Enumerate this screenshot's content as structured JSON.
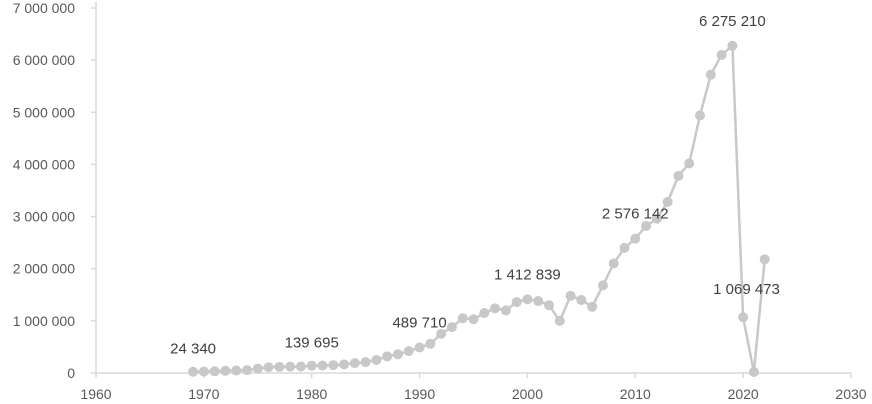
{
  "chart_data": {
    "type": "scatter",
    "style": "line-with-markers",
    "line_color": "#c8c8c8",
    "marker_color": "#c8c8c8",
    "axis_color": "#d9d9d9",
    "grid": false,
    "legend": "none",
    "xlim": [
      1960,
      2030
    ],
    "ylim": [
      0,
      7000000
    ],
    "x_ticks": [
      1960,
      1970,
      1980,
      1990,
      2000,
      2010,
      2020,
      2030
    ],
    "y_ticks": [
      0,
      1000000,
      2000000,
      3000000,
      4000000,
      5000000,
      6000000,
      7000000
    ],
    "x_tick_labels": [
      "1960",
      "1970",
      "1980",
      "1990",
      "2000",
      "2010",
      "2020",
      "2030"
    ],
    "y_tick_labels": [
      "0",
      "1 000 000",
      "2 000 000",
      "3 000 000",
      "4 000 000",
      "5 000 000",
      "6 000 000",
      "7 000 000"
    ],
    "series": [
      {
        "points": [
          [
            1969,
            24340
          ],
          [
            1970,
            28000
          ],
          [
            1971,
            33000
          ],
          [
            1972,
            42000
          ],
          [
            1973,
            48000
          ],
          [
            1974,
            55000
          ],
          [
            1975,
            85000
          ],
          [
            1976,
            110000
          ],
          [
            1977,
            118000
          ],
          [
            1978,
            122000
          ],
          [
            1979,
            125000
          ],
          [
            1980,
            139695
          ],
          [
            1981,
            143000
          ],
          [
            1982,
            150000
          ],
          [
            1983,
            165000
          ],
          [
            1984,
            190000
          ],
          [
            1985,
            210000
          ],
          [
            1986,
            250000
          ],
          [
            1987,
            320000
          ],
          [
            1988,
            360000
          ],
          [
            1989,
            420000
          ],
          [
            1990,
            489710
          ],
          [
            1991,
            560000
          ],
          [
            1992,
            750000
          ],
          [
            1993,
            880000
          ],
          [
            1994,
            1050000
          ],
          [
            1995,
            1030000
          ],
          [
            1996,
            1150000
          ],
          [
            1997,
            1240000
          ],
          [
            1998,
            1200000
          ],
          [
            1999,
            1360000
          ],
          [
            2000,
            1412839
          ],
          [
            2001,
            1380000
          ],
          [
            2002,
            1300000
          ],
          [
            2003,
            1000000
          ],
          [
            2004,
            1480000
          ],
          [
            2005,
            1400000
          ],
          [
            2006,
            1270000
          ],
          [
            2007,
            1680000
          ],
          [
            2008,
            2100000
          ],
          [
            2009,
            2400000
          ],
          [
            2010,
            2576142
          ],
          [
            2011,
            2820000
          ],
          [
            2012,
            2960000
          ],
          [
            2013,
            3280000
          ],
          [
            2014,
            3780000
          ],
          [
            2015,
            4020000
          ],
          [
            2016,
            4940000
          ],
          [
            2017,
            5720000
          ],
          [
            2018,
            6100000
          ],
          [
            2019,
            6275210
          ],
          [
            2020,
            1069473
          ],
          [
            2021,
            20000
          ],
          [
            2022,
            2180000
          ]
        ]
      }
    ],
    "data_labels": [
      {
        "x": 1969,
        "y": 24340,
        "text": "24 340"
      },
      {
        "x": 1980,
        "y": 139695,
        "text": "139 695"
      },
      {
        "x": 1990,
        "y": 489710,
        "text": "489 710"
      },
      {
        "x": 2000,
        "y": 1412839,
        "text": "1 412 839"
      },
      {
        "x": 2010,
        "y": 2576142,
        "text": "2 576 142"
      },
      {
        "x": 2019,
        "y": 6275210,
        "text": "6 275 210"
      },
      {
        "x": 2020,
        "y": 1069473,
        "text": "1 069 473"
      }
    ]
  }
}
